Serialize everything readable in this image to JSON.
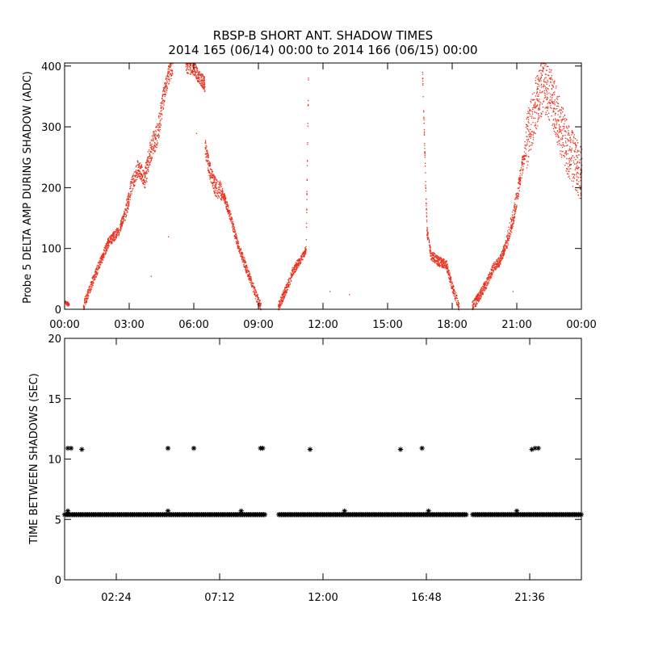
{
  "figure": {
    "title_line1": "RBSP-B SHORT ANT. SHADOW TIMES",
    "title_line2": "2014 165 (06/14) 00:00 to 2014 166 (06/15) 00:00"
  },
  "chart_data": [
    {
      "type": "scatter",
      "title": "",
      "xlabel": "",
      "ylabel": "Probe 5 DELTA AMP DURING SHADOW (ADC)",
      "xlim": [
        0,
        24
      ],
      "ylim": [
        0,
        405
      ],
      "x_unit": "hours",
      "xticks": [
        0,
        3,
        6,
        9,
        12,
        15,
        18,
        21,
        24
      ],
      "xtick_labels": [
        "00:00",
        "03:00",
        "06:00",
        "09:00",
        "12:00",
        "15:00",
        "18:00",
        "21:00",
        "00:00"
      ],
      "yticks": [
        0,
        100,
        200,
        300,
        400
      ],
      "ytick_labels": [
        "0",
        "100",
        "200",
        "300",
        "400"
      ],
      "marker_color": "#e8321e",
      "grid": false,
      "segments": [
        {
          "x": [
            0.0,
            0.2
          ],
          "y": [
            12,
            8
          ],
          "spread": 3
        },
        {
          "x": [
            0.85,
            1.2,
            1.6,
            2.0,
            2.5,
            2.8
          ],
          "y": [
            5,
            40,
            75,
            110,
            130,
            160
          ],
          "spread": 8
        },
        {
          "x": [
            2.8,
            3.1,
            3.4,
            3.7
          ],
          "y": [
            160,
            205,
            235,
            215
          ],
          "spread": 14
        },
        {
          "x": [
            3.7,
            4.0,
            4.3,
            4.6
          ],
          "y": [
            215,
            265,
            290,
            355
          ],
          "spread": 20
        },
        {
          "x": [
            4.6,
            4.8,
            5.0
          ],
          "y": [
            355,
            385,
            400
          ],
          "spread": 15
        },
        {
          "x": [
            5.6,
            6.0,
            6.3,
            6.5
          ],
          "y": [
            400,
            395,
            380,
            370
          ],
          "spread": 12
        },
        {
          "x": [
            6.5,
            6.7,
            7.0,
            7.3
          ],
          "y": [
            270,
            230,
            200,
            195
          ],
          "spread": 15
        },
        {
          "x": [
            7.3,
            7.7,
            8.0,
            8.3,
            8.6,
            8.9,
            9.1
          ],
          "y": [
            195,
            150,
            110,
            80,
            50,
            20,
            5
          ],
          "spread": 8
        },
        {
          "x": [
            9.9,
            10.1,
            10.4,
            10.6,
            10.8
          ],
          "y": [
            5,
            20,
            45,
            65,
            75
          ],
          "spread": 8
        },
        {
          "x": [
            10.8,
            11.0,
            11.2
          ],
          "y": [
            75,
            85,
            100
          ],
          "spread": 6
        },
        {
          "x": [
            11.2,
            11.3
          ],
          "y": [
            110,
            380
          ],
          "spread": 6
        },
        {
          "x": [
            16.6,
            16.8
          ],
          "y": [
            390,
            140
          ],
          "spread": 6
        },
        {
          "x": [
            16.8,
            17.0,
            17.3,
            17.7
          ],
          "y": [
            130,
            90,
            80,
            75
          ],
          "spread": 8
        },
        {
          "x": [
            17.7,
            18.0,
            18.3
          ],
          "y": [
            75,
            35,
            5
          ],
          "spread": 8
        },
        {
          "x": [
            18.9,
            19.2,
            19.6,
            19.9,
            20.2,
            20.5
          ],
          "y": [
            5,
            20,
            45,
            70,
            80,
            110
          ],
          "spread": 8
        },
        {
          "x": [
            20.5,
            20.8,
            21.1,
            21.4
          ],
          "y": [
            110,
            150,
            210,
            270
          ],
          "spread": 15
        },
        {
          "x": [
            21.4,
            21.8,
            22.2,
            22.6,
            23.0,
            23.4,
            24.0
          ],
          "y": [
            270,
            330,
            370,
            350,
            300,
            260,
            220
          ],
          "spread": 45
        }
      ],
      "outliers": [
        {
          "x": 4.8,
          "y": 120
        },
        {
          "x": 4.0,
          "y": 55
        },
        {
          "x": 12.3,
          "y": 30
        },
        {
          "x": 13.2,
          "y": 25
        },
        {
          "x": 20.8,
          "y": 30
        },
        {
          "x": 6.1,
          "y": 290
        }
      ]
    },
    {
      "type": "scatter",
      "title": "",
      "xlabel": "",
      "ylabel": "TIME BETWEEN SHADOWS (SEC)",
      "xlim": [
        0,
        24
      ],
      "ylim": [
        0,
        20
      ],
      "x_unit": "hours",
      "xticks": [
        2.4,
        7.2,
        12.0,
        16.8,
        21.6
      ],
      "xtick_labels": [
        "02:24",
        "07:12",
        "12:00",
        "16:48",
        "21:36"
      ],
      "yticks": [
        0,
        5,
        10,
        15,
        20
      ],
      "ytick_labels": [
        "0",
        "5",
        "10",
        "15",
        "20"
      ],
      "marker": "asterisk",
      "marker_color": "#000000",
      "grid": false,
      "baseline_value": 5.4,
      "baseline_ranges": [
        [
          0.0,
          9.35
        ],
        [
          9.95,
          18.65
        ],
        [
          18.95,
          24.0
        ]
      ],
      "baseline_extra": [
        {
          "x": 0.15,
          "y": 5.7
        },
        {
          "x": 4.8,
          "y": 5.7
        },
        {
          "x": 8.2,
          "y": 5.7
        },
        {
          "x": 13.0,
          "y": 5.7
        },
        {
          "x": 16.9,
          "y": 5.7
        },
        {
          "x": 21.0,
          "y": 5.7
        }
      ],
      "high_points": [
        {
          "x": 0.15,
          "y": 10.9
        },
        {
          "x": 0.3,
          "y": 10.9
        },
        {
          "x": 0.8,
          "y": 10.8
        },
        {
          "x": 4.8,
          "y": 10.9
        },
        {
          "x": 6.0,
          "y": 10.9
        },
        {
          "x": 9.1,
          "y": 10.9
        },
        {
          "x": 9.2,
          "y": 10.9
        },
        {
          "x": 11.4,
          "y": 10.8
        },
        {
          "x": 15.6,
          "y": 10.8
        },
        {
          "x": 16.6,
          "y": 10.9
        },
        {
          "x": 21.7,
          "y": 10.8
        },
        {
          "x": 21.85,
          "y": 10.9
        },
        {
          "x": 22.0,
          "y": 10.9
        }
      ]
    }
  ]
}
